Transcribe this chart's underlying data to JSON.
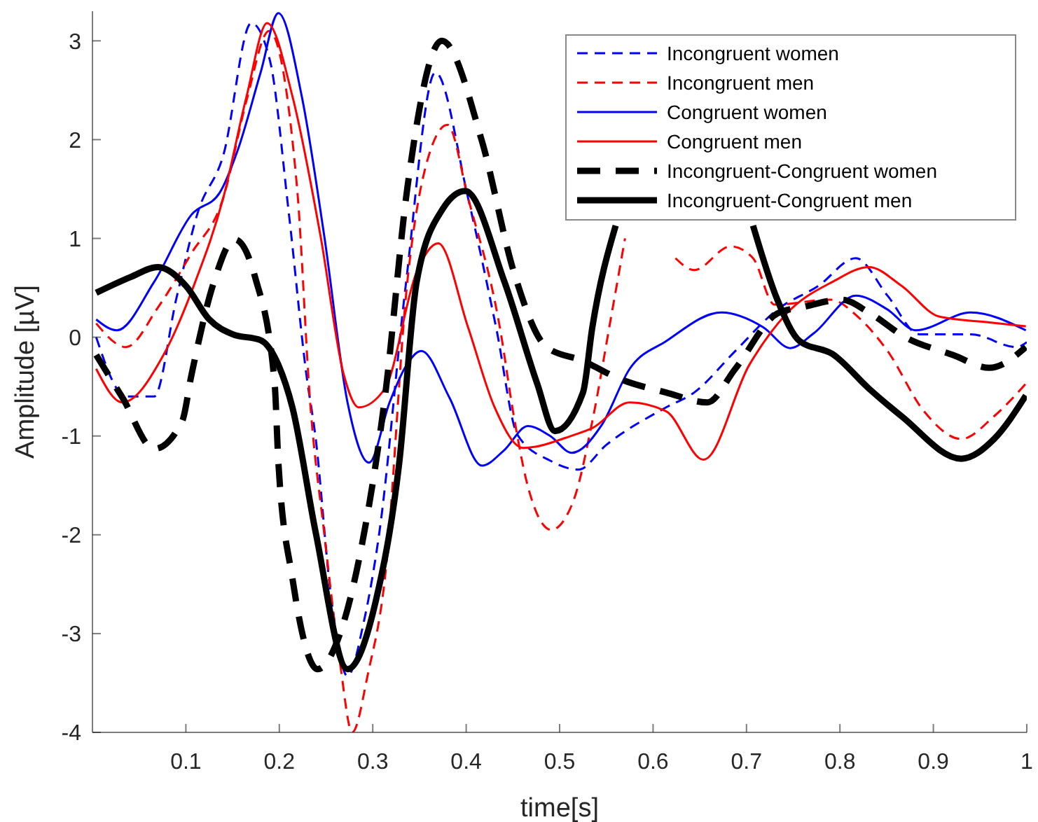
{
  "chart_data": {
    "type": "line",
    "xlabel": "time[s]",
    "ylabel": "Amplitude [µV]",
    "xlim": [
      0,
      1
    ],
    "ylim": [
      -4,
      3.3
    ],
    "xticks": [
      0.1,
      0.2,
      0.3,
      0.4,
      0.5,
      0.6,
      0.7,
      0.8,
      0.9,
      1
    ],
    "yticks": [
      -4,
      -3,
      -2,
      -1,
      0,
      1,
      2,
      3
    ],
    "grid": false,
    "legend": "top right",
    "marker": "none",
    "series": [
      {
        "name": "Incongruent women",
        "color": "#0000ff",
        "line_style": "dashed",
        "x": [
          0.004,
          0.036,
          0.066,
          0.09,
          0.113,
          0.14,
          0.17,
          0.19,
          0.21,
          0.229,
          0.239,
          0.255,
          0.273,
          0.29,
          0.307,
          0.335,
          0.367,
          0.402,
          0.432,
          0.455,
          0.49,
          0.52,
          0.55,
          0.614,
          0.644,
          0.688,
          0.733,
          0.777,
          0.817,
          0.851,
          0.885,
          0.94,
          0.989,
          1
        ],
        "values": [
          0,
          -0.6,
          -0.6,
          0.4,
          1.27,
          1.84,
          3.18,
          2.8,
          1.27,
          -0.38,
          -1.03,
          -2.6,
          -3.43,
          -2.9,
          -1.98,
          0.5,
          2.68,
          1.41,
          0.1,
          -0.99,
          -1.25,
          -1.34,
          -1.09,
          -0.71,
          -0.56,
          -0.14,
          0.28,
          0.52,
          0.8,
          0.42,
          0.03,
          0.03,
          -0.1,
          -0.05
        ]
      },
      {
        "name": "Incongruent men",
        "color": "#ff0000",
        "line_style": "dashed",
        "x": [
          0.004,
          0.036,
          0.07,
          0.106,
          0.14,
          0.165,
          0.189,
          0.219,
          0.233,
          0.248,
          0.265,
          0.278,
          0.295,
          0.313,
          0.337,
          0.357,
          0.38,
          0.402,
          0.436,
          0.451,
          0.466,
          0.491,
          0.515,
          0.535,
          0.555,
          0.57,
          0.6,
          0.624,
          0.644,
          0.683,
          0.707,
          0.73,
          0.79,
          0.82,
          0.851,
          0.89,
          0.93,
          0.965,
          0.999
        ],
        "values": [
          0.14,
          -0.1,
          0.3,
          0.85,
          1.41,
          2.4,
          3.1,
          1.51,
          -0.66,
          -1.98,
          -3.3,
          -4.0,
          -3.4,
          -2.44,
          0.56,
          1.74,
          2.15,
          1.41,
          0.1,
          -0.8,
          -1.51,
          -1.95,
          -1.65,
          -0.85,
          0.2,
          1.0,
          null,
          0.8,
          0.68,
          0.92,
          0.8,
          0.33,
          0.38,
          0.2,
          -0.14,
          -0.75,
          -1.03,
          -0.8,
          -0.47
        ]
      },
      {
        "name": "Congruent women",
        "color": "#0000ff",
        "line_style": "solid",
        "x": [
          0.004,
          0.026,
          0.066,
          0.106,
          0.136,
          0.155,
          0.18,
          0.199,
          0.224,
          0.248,
          0.273,
          0.296,
          0.318,
          0.335,
          0.352,
          0.382,
          0.417,
          0.44,
          0.466,
          0.49,
          0.513,
          0.545,
          0.575,
          0.614,
          0.673,
          0.718,
          0.747,
          0.772,
          0.817,
          0.851,
          0.881,
          0.94,
          0.999
        ],
        "values": [
          0.18,
          0.07,
          0.56,
          1.24,
          1.46,
          1.88,
          2.68,
          3.28,
          2.44,
          1.03,
          -0.66,
          -1.27,
          -0.66,
          -0.3,
          -0.14,
          -0.61,
          -1.3,
          -1.15,
          -0.9,
          -1.0,
          -1.17,
          -0.89,
          -0.32,
          -0.04,
          0.25,
          0.1,
          -0.11,
          0.04,
          0.42,
          0.28,
          0.07,
          0.25,
          0.07
        ]
      },
      {
        "name": "Congruent men",
        "color": "#ff0000",
        "line_style": "solid",
        "x": [
          0.004,
          0.032,
          0.076,
          0.11,
          0.14,
          0.165,
          0.187,
          0.214,
          0.244,
          0.269,
          0.285,
          0.313,
          0.347,
          0.37,
          0.402,
          0.43,
          0.461,
          0.515,
          0.535,
          0.575,
          0.614,
          0.654,
          0.703,
          0.743,
          0.792,
          0.831,
          0.866,
          0.906,
          0.96,
          0.999
        ],
        "values": [
          -0.32,
          -0.66,
          -0.18,
          0.56,
          1.41,
          2.44,
          3.18,
          2.44,
          1.03,
          -0.38,
          -0.71,
          -0.52,
          0.66,
          0.95,
          0.1,
          -0.7,
          -1.12,
          -0.99,
          -0.92,
          -0.66,
          -0.75,
          -1.24,
          -0.28,
          0.24,
          0.56,
          0.71,
          0.52,
          0.21,
          0.15,
          0.11
        ]
      },
      {
        "name": "Incongruent-Congruent women",
        "color": "#000000",
        "line_style": "dashed",
        "x": [
          0.004,
          0.032,
          0.066,
          0.096,
          0.106,
          0.13,
          0.152,
          0.174,
          0.195,
          0.199,
          0.214,
          0.241,
          0.265,
          0.288,
          0.313,
          0.337,
          0.374,
          0.417,
          0.451,
          0.486,
          0.525,
          0.564,
          0.614,
          0.658,
          0.688,
          0.733,
          0.762,
          0.802,
          0.831,
          0.87,
          0.921,
          0.96,
          0.999
        ],
        "values": [
          -0.18,
          -0.61,
          -1.13,
          -0.85,
          -0.38,
          0.56,
          0.99,
          0.61,
          -0.47,
          -1.27,
          -2.44,
          -3.36,
          -3.0,
          -2.12,
          -0.61,
          1.51,
          3.0,
          1.98,
          0.66,
          -0.1,
          -0.24,
          -0.42,
          -0.56,
          -0.66,
          -0.32,
          0.24,
          0.31,
          0.38,
          0.25,
          0,
          -0.18,
          -0.31,
          -0.1
        ]
      },
      {
        "name": "Incongruent-Congruent men",
        "color": "#000000",
        "line_style": "solid",
        "x": [
          0.004,
          0.041,
          0.07,
          0.1,
          0.125,
          0.15,
          0.18,
          0.199,
          0.214,
          0.239,
          0.273,
          0.303,
          0.328,
          0.347,
          0.375,
          0.399,
          0.441,
          0.476,
          0.495,
          0.525,
          0.535,
          0.56,
          0.62,
          0.66,
          0.707,
          0.733,
          0.757,
          0.792,
          0.831,
          0.866,
          0.93,
          0.965,
          0.999
        ],
        "values": [
          0.45,
          0.61,
          0.71,
          0.52,
          0.18,
          0.03,
          -0.03,
          -0.28,
          -0.71,
          -1.98,
          -3.36,
          -2.68,
          -1.3,
          0.56,
          1.3,
          1.48,
          0.56,
          -0.47,
          -0.95,
          -0.56,
          0.1,
          1.13,
          null,
          null,
          1.13,
          0.38,
          -0.04,
          -0.17,
          -0.52,
          -0.8,
          -1.23,
          -1.03,
          -0.59
        ]
      }
    ]
  }
}
